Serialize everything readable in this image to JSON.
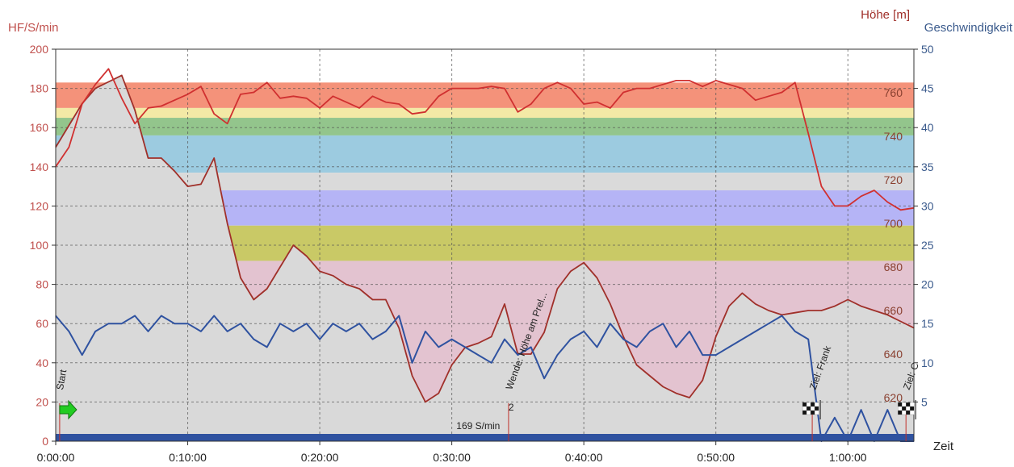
{
  "chart_data": {
    "type": "line",
    "axes": {
      "left": {
        "label": "HF/S/min",
        "ylim": [
          0,
          200
        ],
        "ticks": [
          0,
          20,
          40,
          60,
          80,
          100,
          120,
          140,
          160,
          180,
          200
        ],
        "color": "#c0504d"
      },
      "right_altitude": {
        "label": "Höhe [m]",
        "ylim": [
          600,
          780
        ],
        "ticks": [
          620,
          640,
          660,
          680,
          700,
          720,
          740,
          760
        ],
        "color": "#a0302a"
      },
      "right_speed": {
        "label": "Geschwindigkeit",
        "ylim": [
          0,
          50
        ],
        "ticks": [
          5,
          10,
          15,
          20,
          25,
          30,
          35,
          40,
          45,
          50
        ],
        "color": "#3a5a8c"
      },
      "x": {
        "label": "Zeit",
        "xlim_min": [
          0,
          65
        ],
        "ticks_min": [
          0,
          10,
          20,
          30,
          40,
          50,
          60
        ],
        "tick_labels": [
          "0:00:00",
          "0:10:00",
          "0:20:00",
          "0:30:00",
          "0:40:00",
          "0:50:00",
          "1:00:00"
        ]
      }
    },
    "grid": true,
    "zones": [
      {
        "from": 170,
        "to": 183,
        "color": "#f4927a"
      },
      {
        "from": 165,
        "to": 170,
        "color": "#f3e9a6"
      },
      {
        "from": 156,
        "to": 165,
        "color": "#93c58c"
      },
      {
        "from": 137,
        "to": 156,
        "color": "#9ccbe0"
      },
      {
        "from": 128,
        "to": 137,
        "color": "#dadada"
      },
      {
        "from": 110,
        "to": 128,
        "color": "#b5b4f6"
      },
      {
        "from": 92,
        "to": 110,
        "color": "#c9c966"
      },
      {
        "from": 0,
        "to": 92,
        "color": "#e3c3d0"
      }
    ],
    "series": [
      {
        "axis": "right_altitude",
        "style": "area",
        "color": "#a0302a",
        "fill": "#d9d9d9",
        "x": [
          0,
          1,
          2,
          3,
          4,
          5,
          6,
          7,
          8,
          9,
          10,
          11,
          12,
          13,
          14,
          15,
          16,
          17,
          18,
          19,
          20,
          21,
          22,
          23,
          24,
          25,
          26,
          27,
          28,
          29,
          30,
          31,
          32,
          33,
          34,
          35,
          36,
          37,
          38,
          39,
          40,
          41,
          42,
          43,
          44,
          45,
          46,
          47,
          48,
          49,
          50,
          51,
          52,
          53,
          54,
          55,
          56,
          57,
          58,
          59,
          60,
          61,
          62,
          63,
          64,
          65
        ],
        "y": [
          735,
          745,
          755,
          762,
          765,
          768,
          752,
          730,
          730,
          724,
          717,
          718,
          730,
          700,
          675,
          665,
          670,
          680,
          690,
          685,
          678,
          676,
          672,
          670,
          665,
          665,
          652,
          630,
          618,
          622,
          635,
          643,
          645,
          648,
          663,
          640,
          640,
          650,
          670,
          678,
          682,
          675,
          663,
          648,
          635,
          630,
          625,
          622,
          620,
          628,
          648,
          662,
          668,
          663,
          660,
          658,
          659,
          660,
          660,
          662,
          665,
          662,
          660,
          658,
          655,
          652
        ]
      },
      {
        "axis": "left",
        "style": "line",
        "color": "#d03030",
        "x": [
          0,
          1,
          2,
          3,
          4,
          5,
          6,
          7,
          8,
          9,
          10,
          11,
          12,
          13,
          14,
          15,
          16,
          17,
          18,
          19,
          20,
          21,
          22,
          23,
          24,
          25,
          26,
          27,
          28,
          29,
          30,
          31,
          32,
          33,
          34,
          35,
          36,
          37,
          38,
          39,
          40,
          41,
          42,
          43,
          44,
          45,
          46,
          47,
          48,
          49,
          50,
          51,
          52,
          53,
          54,
          55,
          56,
          57,
          58,
          59,
          60,
          61,
          62,
          63,
          64,
          65
        ],
        "y": [
          140,
          150,
          172,
          182,
          190,
          175,
          162,
          170,
          171,
          174,
          177,
          181,
          167,
          162,
          177,
          178,
          183,
          175,
          176,
          175,
          170,
          176,
          173,
          170,
          176,
          173,
          172,
          167,
          168,
          176,
          180,
          180,
          180,
          181,
          180,
          168,
          172,
          180,
          183,
          180,
          172,
          173,
          170,
          178,
          180,
          180,
          182,
          184,
          184,
          181,
          184,
          182,
          180,
          174,
          176,
          178,
          183,
          157,
          130,
          120,
          120,
          125,
          128,
          122,
          118,
          119
        ]
      },
      {
        "axis": "right_speed",
        "style": "line",
        "color": "#2f52a0",
        "x": [
          0,
          1,
          2,
          3,
          4,
          5,
          6,
          7,
          8,
          9,
          10,
          11,
          12,
          13,
          14,
          15,
          16,
          17,
          18,
          19,
          20,
          21,
          22,
          23,
          24,
          25,
          26,
          27,
          28,
          29,
          30,
          31,
          32,
          33,
          34,
          35,
          36,
          37,
          38,
          39,
          40,
          41,
          42,
          43,
          44,
          45,
          46,
          47,
          48,
          49,
          50,
          51,
          52,
          53,
          54,
          55,
          56,
          57,
          58,
          59,
          60,
          61,
          62,
          63,
          64,
          65
        ],
        "y": [
          16,
          14,
          11,
          14,
          15,
          15,
          16,
          14,
          16,
          15,
          15,
          14,
          16,
          14,
          15,
          13,
          12,
          15,
          14,
          15,
          13,
          15,
          14,
          15,
          13,
          14,
          16,
          10,
          14,
          12,
          13,
          12,
          11,
          10,
          13,
          11,
          12,
          8,
          11,
          13,
          14,
          12,
          15,
          13,
          12,
          14,
          15,
          12,
          14,
          11,
          11,
          12,
          13,
          14,
          15,
          16,
          14,
          13,
          0,
          3,
          0,
          4,
          0,
          4,
          0,
          0
        ]
      }
    ],
    "annotations": [
      {
        "text": "Start",
        "x_min": 0.3
      },
      {
        "text": "Wende: Höhe am Prel...",
        "x_min": 34.3
      },
      {
        "text": "Ziel: Frank",
        "x_min": 57.3
      },
      {
        "text": "Ziel: C",
        "x_min": 64.4
      },
      {
        "text": "2",
        "x_min": 34.5
      },
      {
        "text": "169 S/min",
        "x_min": 32
      }
    ]
  }
}
